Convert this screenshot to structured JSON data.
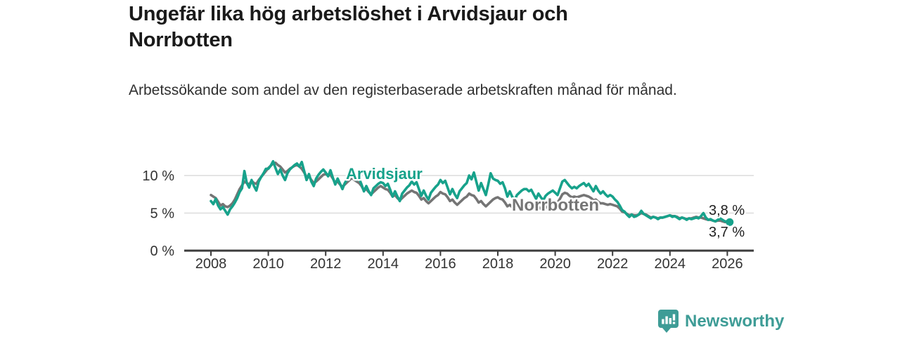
{
  "header": {
    "title": "Ungefär lika hög arbetslöshet i Arvidsjaur och Norrbotten",
    "subtitle": "Arbetssökande som andel av den registerbaserade arbetskraften månad för månad."
  },
  "footer": {
    "brand": "Newsworthy"
  },
  "colors": {
    "arvidsjaur": "#17a28b",
    "norrbotten": "#757575",
    "axis": "#3c3c3c",
    "grid": "#dcdcdc",
    "tick_text": "#333333",
    "value_label": "#1f1f1f",
    "brand_teal": "#3e9c96"
  },
  "chart_data": {
    "type": "line",
    "title": "Ungefär lika hög arbetslöshet i Arvidsjaur och Norrbotten",
    "ylabel": "",
    "xlabel": "",
    "unit": "%",
    "frequency": "monthly",
    "x_start": "2008-01",
    "x_end": "2026-02",
    "ylim": [
      0,
      13.3
    ],
    "grid": "horizontal",
    "legend_position": "inline-labels",
    "x_ticks": [
      2008,
      2010,
      2012,
      2014,
      2016,
      2018,
      2020,
      2022,
      2024,
      2026
    ],
    "y_ticks": [
      {
        "value": 0,
        "label": "0 %"
      },
      {
        "value": 5,
        "label": "5 %"
      },
      {
        "value": 10,
        "label": "10 %"
      }
    ],
    "series": [
      {
        "name": "Norrbotten",
        "color": "#757575",
        "end_label": "3,7 %",
        "end_dot": false,
        "values": [
          7.4,
          7.2,
          7.0,
          6.5,
          6.0,
          6.2,
          5.9,
          5.8,
          6.0,
          6.3,
          6.8,
          7.5,
          8.2,
          8.7,
          9.2,
          9.0,
          8.8,
          9.3,
          9.0,
          8.9,
          9.4,
          9.8,
          10.2,
          10.6,
          11.0,
          11.3,
          11.6,
          11.7,
          11.4,
          11.2,
          10.8,
          10.4,
          10.6,
          10.9,
          11.1,
          11.3,
          11.4,
          11.2,
          10.9,
          10.4,
          9.8,
          9.9,
          9.4,
          9.0,
          9.2,
          9.5,
          9.8,
          10.1,
          10.2,
          10.0,
          10.1,
          9.6,
          9.0,
          9.2,
          8.8,
          8.5,
          8.8,
          9.1,
          9.4,
          9.7,
          9.4,
          9.2,
          9.0,
          8.6,
          8.0,
          8.2,
          7.8,
          7.5,
          7.8,
          8.1,
          8.4,
          8.6,
          8.4,
          8.2,
          8.1,
          7.7,
          7.2,
          7.4,
          7.0,
          6.7,
          7.0,
          7.3,
          7.6,
          7.8,
          8.0,
          7.8,
          7.7,
          7.3,
          6.8,
          7.0,
          6.6,
          6.3,
          6.6,
          6.9,
          7.2,
          7.4,
          7.8,
          7.6,
          7.5,
          7.1,
          6.6,
          6.8,
          6.4,
          6.1,
          6.4,
          6.7,
          7.0,
          7.2,
          7.6,
          7.4,
          7.3,
          6.9,
          6.4,
          6.6,
          6.2,
          5.9,
          6.2,
          6.5,
          6.8,
          7.0,
          7.1,
          6.9,
          6.8,
          6.4,
          5.9,
          6.1,
          5.8,
          5.6,
          5.8,
          6.0,
          6.2,
          6.4,
          6.4,
          6.2,
          6.1,
          5.9,
          5.6,
          5.8,
          5.6,
          5.5,
          5.7,
          5.9,
          6.1,
          6.3,
          6.5,
          6.4,
          6.9,
          7.5,
          7.7,
          7.6,
          7.3,
          7.1,
          7.2,
          7.1,
          7.2,
          7.3,
          7.4,
          7.3,
          7.2,
          7.0,
          6.7,
          6.8,
          6.5,
          6.3,
          6.3,
          6.2,
          6.1,
          6.2,
          6.1,
          6.0,
          5.9,
          5.6,
          5.2,
          5.1,
          4.9,
          4.7,
          4.8,
          4.7,
          4.7,
          4.8,
          5.0,
          4.9,
          4.8,
          4.6,
          4.4,
          4.5,
          4.4,
          4.3,
          4.4,
          4.4,
          4.5,
          4.6,
          4.7,
          4.6,
          4.6,
          4.5,
          4.3,
          4.4,
          4.3,
          4.2,
          4.3,
          4.3,
          4.4,
          4.5,
          4.4,
          4.4,
          4.3,
          4.2,
          4.1,
          4.1,
          4.0,
          3.9,
          4.0,
          4.0,
          3.9,
          3.8,
          3.8,
          3.7
        ]
      },
      {
        "name": "Arvidsjaur",
        "color": "#17a28b",
        "end_label": "3,8 %",
        "end_dot": true,
        "values": [
          6.6,
          6.2,
          6.9,
          6.0,
          5.5,
          5.8,
          5.3,
          4.8,
          5.5,
          5.9,
          6.4,
          7.0,
          7.8,
          8.3,
          10.6,
          9.0,
          8.4,
          9.4,
          8.6,
          8.0,
          9.2,
          9.8,
          10.3,
          10.9,
          10.9,
          11.3,
          11.9,
          11.0,
          10.2,
          10.8,
          10.0,
          9.4,
          10.3,
          10.8,
          11.1,
          11.4,
          11.6,
          11.2,
          11.8,
          10.6,
          9.4,
          10.2,
          9.2,
          8.6,
          9.6,
          10.1,
          10.5,
          10.8,
          10.4,
          9.9,
          10.7,
          9.7,
          8.8,
          9.6,
          8.9,
          8.2,
          9.0,
          9.5,
          9.9,
          10.2,
          9.8,
          9.4,
          9.6,
          8.8,
          7.9,
          8.6,
          7.9,
          7.4,
          8.3,
          8.6,
          8.9,
          9.1,
          9.0,
          8.6,
          8.9,
          8.1,
          7.2,
          7.9,
          7.2,
          6.6,
          7.6,
          8.0,
          8.4,
          8.7,
          9.2,
          8.8,
          9.1,
          8.2,
          7.3,
          8.0,
          7.3,
          6.8,
          7.7,
          8.1,
          8.5,
          8.8,
          9.4,
          9.0,
          9.3,
          8.4,
          7.5,
          8.2,
          7.5,
          7.0,
          7.9,
          8.3,
          8.7,
          9.0,
          10.0,
          9.5,
          10.4,
          9.2,
          8.0,
          9.0,
          8.2,
          7.4,
          8.8,
          10.3,
          9.6,
          9.4,
          9.3,
          8.9,
          9.1,
          8.3,
          7.2,
          7.9,
          7.2,
          6.7,
          7.4,
          7.7,
          8.0,
          8.2,
          8.2,
          7.9,
          8.1,
          7.5,
          6.9,
          7.6,
          7.1,
          6.7,
          7.3,
          7.6,
          7.8,
          8.0,
          7.7,
          7.4,
          8.3,
          9.2,
          9.4,
          9.0,
          8.6,
          8.3,
          8.5,
          8.3,
          8.6,
          8.8,
          9.0,
          8.6,
          8.9,
          8.4,
          7.9,
          8.6,
          8.0,
          7.6,
          7.9,
          7.5,
          7.2,
          7.4,
          7.2,
          6.8,
          6.5,
          6.0,
          5.4,
          5.2,
          4.8,
          4.5,
          4.8,
          4.5,
          4.6,
          4.8,
          5.3,
          4.9,
          4.7,
          4.5,
          4.3,
          4.5,
          4.4,
          4.2,
          4.4,
          4.4,
          4.5,
          4.6,
          4.7,
          4.5,
          4.6,
          4.4,
          4.2,
          4.4,
          4.3,
          4.1,
          4.3,
          4.2,
          4.3,
          4.4,
          4.3,
          4.6,
          5.0,
          4.4,
          4.1,
          4.2,
          4.0,
          3.9,
          4.1,
          4.3,
          4.1,
          3.9,
          3.9,
          3.8
        ]
      }
    ]
  }
}
